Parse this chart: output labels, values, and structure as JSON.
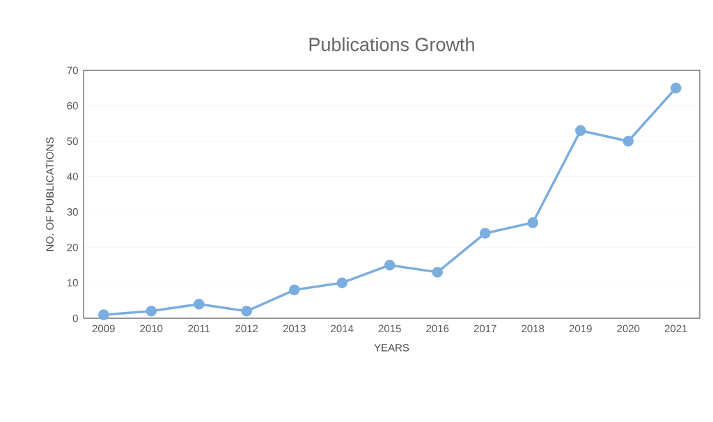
{
  "chart_data": {
    "type": "line",
    "title": "Publications Growth",
    "xlabel": "YEARS",
    "ylabel": "NO. OF PUBLICATIONS",
    "categories": [
      "2009",
      "2010",
      "2011",
      "2012",
      "2013",
      "2014",
      "2015",
      "2016",
      "2017",
      "2018",
      "2019",
      "2020",
      "2021"
    ],
    "series": [
      {
        "color": "#7badde",
        "values": [
          1,
          2,
          4,
          2,
          8,
          10,
          15,
          13,
          24,
          27,
          53,
          50,
          65
        ]
      }
    ],
    "ylim": [
      0,
      70
    ],
    "yticks": [
      0,
      10,
      20,
      30,
      40,
      50,
      60,
      70
    ],
    "grid": "y",
    "marker": "circle",
    "line_style": "solid"
  }
}
